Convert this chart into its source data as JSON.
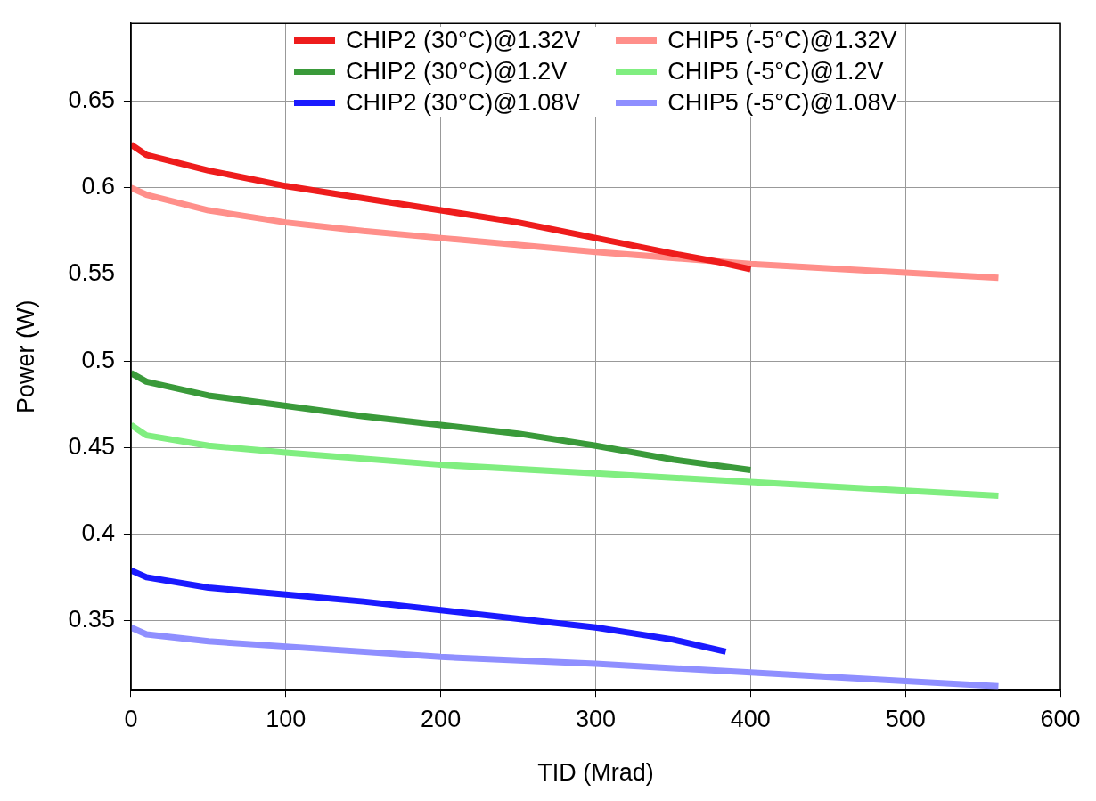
{
  "chart_data": {
    "type": "line",
    "xlabel": "TID (Mrad)",
    "ylabel": "Power (W)",
    "xlim": [
      0,
      600
    ],
    "xticks": [
      0,
      100,
      200,
      300,
      400,
      500,
      600
    ],
    "ylim": [
      0.31,
      0.695
    ],
    "yticks": [
      0.35,
      0.4,
      0.45,
      0.5,
      0.55,
      0.6,
      0.65
    ],
    "grid": true,
    "legend": "top",
    "marker": "none",
    "line_style": "solid",
    "series": [
      {
        "name": "CHIP2 (30°C)@1.32V",
        "color": "#ee1c1c",
        "x": [
          0,
          10,
          50,
          100,
          150,
          200,
          250,
          300,
          350,
          380,
          400
        ],
        "values": [
          0.625,
          0.619,
          0.61,
          0.601,
          0.594,
          0.587,
          0.58,
          0.571,
          0.562,
          0.557,
          0.553
        ]
      },
      {
        "name": "CHIP2 (30°C)@1.2V",
        "color": "#3a9a3a",
        "x": [
          0,
          10,
          50,
          100,
          150,
          200,
          250,
          300,
          350,
          400
        ],
        "values": [
          0.493,
          0.488,
          0.48,
          0.474,
          0.468,
          0.463,
          0.458,
          0.451,
          0.443,
          0.437
        ]
      },
      {
        "name": "CHIP2 (30°C)@1.08V",
        "color": "#1a1aff",
        "x": [
          0,
          10,
          50,
          100,
          150,
          200,
          250,
          300,
          350,
          384
        ],
        "values": [
          0.379,
          0.375,
          0.369,
          0.365,
          0.361,
          0.356,
          0.351,
          0.346,
          0.339,
          0.332
        ]
      },
      {
        "name": "CHIP5 (-5°C)@1.32V",
        "color": "#ff8f8a",
        "x": [
          0,
          10,
          50,
          100,
          150,
          200,
          300,
          400,
          500,
          560
        ],
        "values": [
          0.6,
          0.596,
          0.587,
          0.58,
          0.575,
          0.571,
          0.563,
          0.556,
          0.551,
          0.548
        ]
      },
      {
        "name": "CHIP5 (-5°C)@1.2V",
        "color": "#80ee80",
        "x": [
          0,
          10,
          50,
          100,
          200,
          300,
          400,
          500,
          560
        ],
        "values": [
          0.463,
          0.457,
          0.451,
          0.447,
          0.44,
          0.435,
          0.43,
          0.425,
          0.422
        ]
      },
      {
        "name": "CHIP5 (-5°C)@1.08V",
        "color": "#8f8fff",
        "x": [
          0,
          10,
          50,
          100,
          200,
          300,
          400,
          500,
          560
        ],
        "values": [
          0.346,
          0.342,
          0.338,
          0.335,
          0.329,
          0.325,
          0.32,
          0.315,
          0.312
        ]
      }
    ]
  }
}
